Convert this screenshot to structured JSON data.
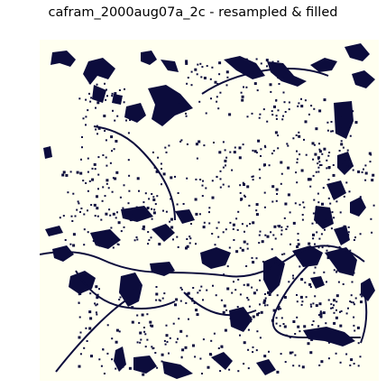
{
  "title": "cafram_2000aug07a_2c - resampled & filled",
  "colors": {
    "background": "#fffff0",
    "foreground": "#0c0c3c",
    "page": "#ffffff"
  }
}
